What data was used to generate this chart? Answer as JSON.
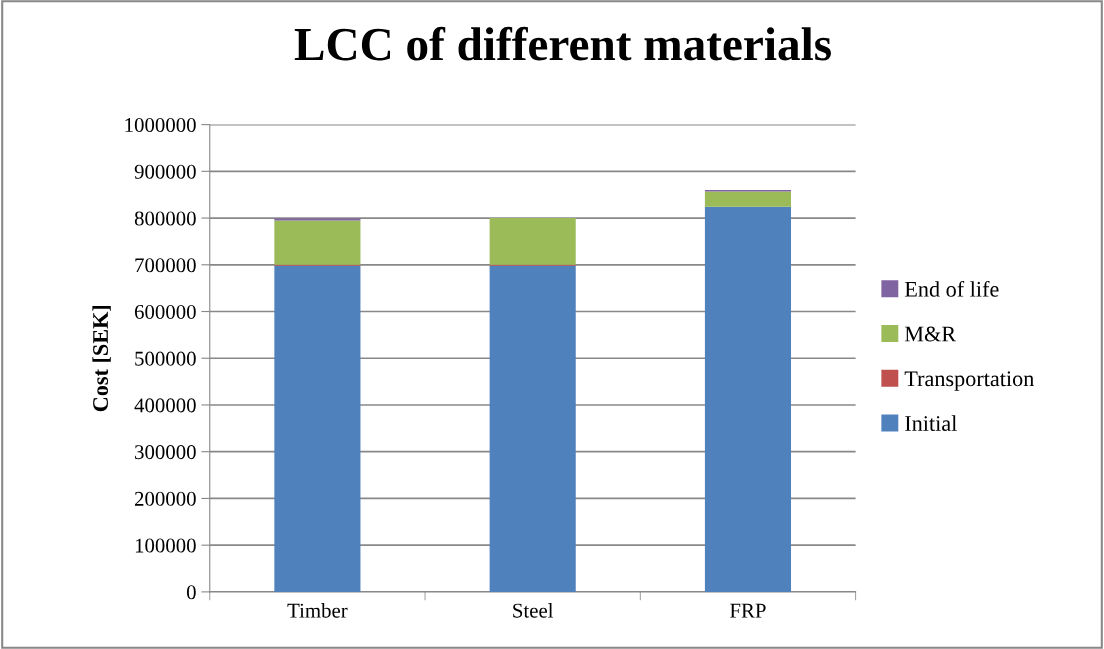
{
  "chart_data": {
    "type": "bar",
    "stacked": true,
    "title": "LCC of different materials",
    "ylabel": "Cost [SEK]",
    "categories": [
      "Timber",
      "Steel",
      "FRP"
    ],
    "series": [
      {
        "name": "Initial",
        "color": "#4f81bd",
        "values": [
          698000,
          698000,
          824000
        ]
      },
      {
        "name": "Transportation",
        "color": "#c0504d",
        "values": [
          2000,
          2000,
          null
        ]
      },
      {
        "name": "M&R",
        "color": "#9bbb59",
        "values": [
          95000,
          100000,
          33000
        ]
      },
      {
        "name": "End of life",
        "color": "#8064a2",
        "values": [
          4000,
          null,
          3000
        ]
      }
    ],
    "ylim": [
      0,
      1000000
    ],
    "yticks": [
      0,
      100000,
      200000,
      300000,
      400000,
      500000,
      600000,
      700000,
      800000,
      900000,
      1000000
    ],
    "grid": "y",
    "legend": "right"
  }
}
